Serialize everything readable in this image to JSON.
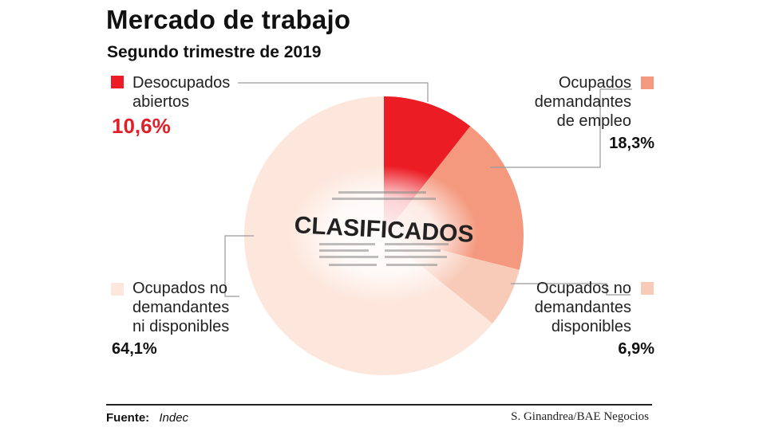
{
  "header": {
    "title": "Mercado de trabajo",
    "subtitle": "Segundo trimestre de 2019"
  },
  "chart_data": {
    "type": "pie",
    "title": "Mercado de trabajo",
    "subtitle": "Segundo trimestre de 2019",
    "slices": [
      {
        "name_lines": [
          "Desocupados",
          "abiertos"
        ],
        "value": 10.6,
        "display": "10,6%",
        "color": "#ec1c24"
      },
      {
        "name_lines": [
          "Ocupados",
          "demandantes",
          "de empleo"
        ],
        "value": 18.3,
        "display": "18,3%",
        "color": "#f4997e"
      },
      {
        "name_lines": [
          "Ocupados no",
          "demandantes",
          "disponibles"
        ],
        "value": 6.9,
        "display": "6,9%",
        "color": "#f8cbb9"
      },
      {
        "name_lines": [
          "Ocupados no",
          "demandantes",
          "ni disponibles"
        ],
        "value": 64.1,
        "display": "64,1%",
        "color": "#fde7dd"
      }
    ],
    "center_image_text": "CLASIFICADOS"
  },
  "footer": {
    "source_label": "Fuente:",
    "source_value": "Indec",
    "credit": "S. Ginandrea/BAE Negocios"
  }
}
